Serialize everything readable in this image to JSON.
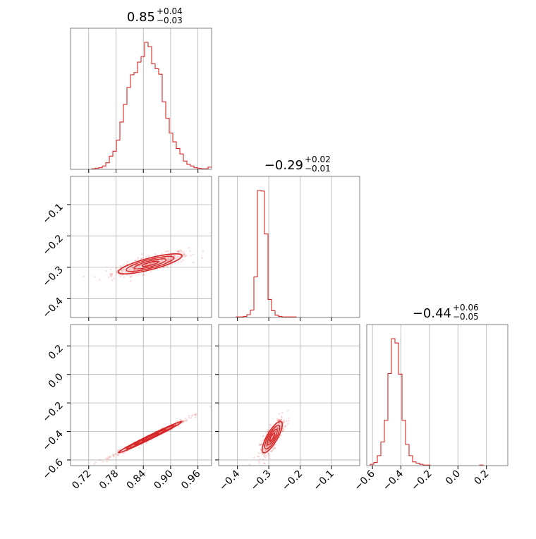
{
  "accent_color": "#d62728",
  "chart_data": {
    "type": "corner",
    "parameters": 3,
    "diagonal_titles": [
      {
        "value": "0.85",
        "plus": "+0.04",
        "minus": "−0.03"
      },
      {
        "value": "−0.29",
        "plus": "+0.02",
        "minus": "−0.01"
      },
      {
        "value": "−0.44",
        "plus": "+0.06",
        "minus": "−0.05"
      }
    ],
    "ranges": [
      [
        0.68,
        0.99
      ],
      [
        -0.46,
        -0.01
      ],
      [
        -0.64,
        0.35
      ]
    ],
    "ticks": [
      {
        "values": [
          0.72,
          0.78,
          0.84,
          0.9,
          0.96
        ],
        "labels": [
          "0.72",
          "0.78",
          "0.84",
          "0.90",
          "0.96"
        ]
      },
      {
        "values": [
          -0.4,
          -0.3,
          -0.2,
          -0.1
        ],
        "labels": [
          "−0.4",
          "−0.3",
          "−0.2",
          "−0.1"
        ]
      },
      {
        "values": [
          -0.6,
          -0.4,
          -0.2,
          0.0,
          0.2
        ],
        "labels": [
          "−0.6",
          "−0.4",
          "−0.2",
          "0.0",
          "0.2"
        ]
      }
    ],
    "histograms": [
      {
        "param": 0,
        "bin_start": 0.68,
        "bin_width": 0.00775,
        "counts": [
          0,
          0,
          0,
          0,
          0,
          0,
          1,
          2,
          3,
          6,
          12,
          24,
          33,
          53,
          86,
          118,
          149,
          172,
          176,
          195,
          205,
          231,
          223,
          192,
          183,
          173,
          123,
          93,
          66,
          50,
          38,
          28,
          15,
          9,
          6,
          3,
          2,
          1,
          1,
          4
        ]
      },
      {
        "param": 1,
        "bin_start": -0.46,
        "bin_width": 0.01125,
        "counts": [
          0,
          0,
          0,
          0,
          0,
          1,
          1,
          2,
          5,
          13,
          72,
          225,
          224,
          148,
          32,
          12,
          4,
          2,
          1,
          1,
          1,
          1,
          0,
          0,
          0,
          0,
          0,
          0,
          0,
          0,
          0,
          0,
          0,
          0,
          0,
          0,
          0,
          0,
          0,
          0
        ]
      },
      {
        "param": 2,
        "bin_start": -0.64,
        "bin_width": 0.02475,
        "counts": [
          0,
          2,
          5,
          16,
          38,
          73,
          148,
          204,
          197,
          147,
          73,
          34,
          16,
          6,
          4,
          2,
          1,
          1,
          0,
          0,
          0,
          0,
          0,
          0,
          0,
          0,
          0,
          0,
          0,
          0,
          0,
          0,
          1,
          0,
          0,
          0,
          0,
          0,
          0,
          0
        ]
      }
    ],
    "correlations": [
      {
        "x_param": 0,
        "y_param": 1,
        "mean": [
          0.855,
          -0.289
        ],
        "sd": [
          0.035,
          0.016
        ],
        "rho": 0.8,
        "n_points": 420
      },
      {
        "x_param": 0,
        "y_param": 2,
        "mean": [
          0.855,
          -0.44
        ],
        "sd": [
          0.035,
          0.055
        ],
        "rho": 0.99,
        "n_points": 420
      },
      {
        "x_param": 1,
        "y_param": 2,
        "mean": [
          -0.289,
          -0.44
        ],
        "sd": [
          0.016,
          0.055
        ],
        "rho": 0.8,
        "n_points": 420
      }
    ],
    "grid": true,
    "legend": "none"
  }
}
